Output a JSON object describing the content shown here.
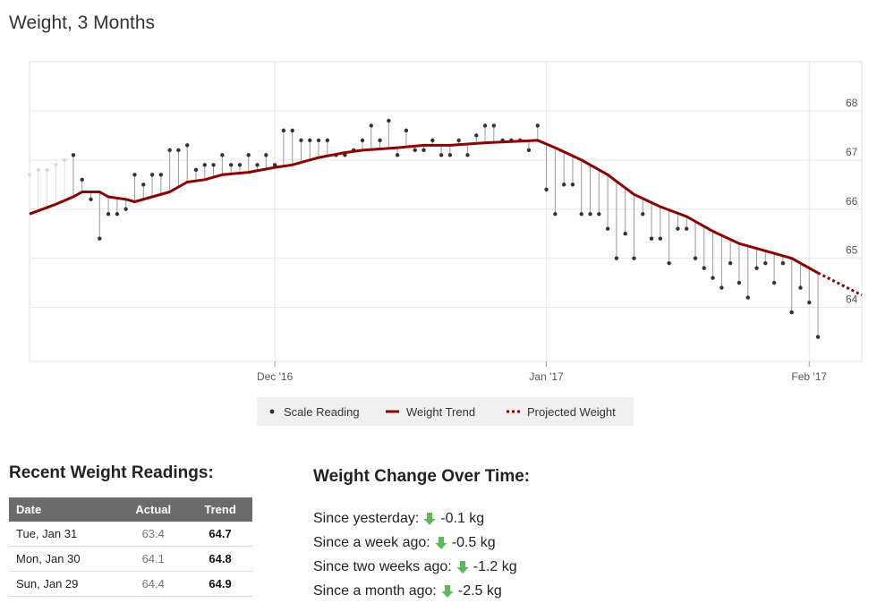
{
  "page_title": "Weight, 3 Months",
  "colors": {
    "trend": "#8b0000",
    "reading": "#333333",
    "grid": "#e6e6e6",
    "arrow": "#5cb85c",
    "table_header": "#6b6b6b"
  },
  "chart_data": {
    "type": "line",
    "title": "Weight, 3 Months",
    "x_start": "2016-11-03",
    "x_end": "2017-02-06",
    "ylim": [
      62.9,
      69.0
    ],
    "y_ticks": [
      64,
      65,
      66,
      67,
      68
    ],
    "x_ticks": [
      {
        "date": "2016-12-01",
        "label": "Dec '16"
      },
      {
        "date": "2017-01-01",
        "label": "Jan '17"
      },
      {
        "date": "2017-01-31",
        "label": "Feb '17"
      }
    ],
    "legend": [
      "Scale Reading",
      "Weight Trend",
      "Projected Weight"
    ],
    "faded_readings": [
      {
        "day": 0,
        "value": 66.7
      },
      {
        "day": 1,
        "value": 66.8
      },
      {
        "day": 2,
        "value": 66.8
      },
      {
        "day": 3,
        "value": 66.9
      },
      {
        "day": 4,
        "value": 67.0
      }
    ],
    "readings": [
      {
        "day": 5,
        "value": 67.1
      },
      {
        "day": 6,
        "value": 66.6
      },
      {
        "day": 7,
        "value": 66.2
      },
      {
        "day": 8,
        "value": 65.4
      },
      {
        "day": 9,
        "value": 65.9
      },
      {
        "day": 10,
        "value": 65.9
      },
      {
        "day": 11,
        "value": 66.0
      },
      {
        "day": 12,
        "value": 66.7
      },
      {
        "day": 13,
        "value": 66.5
      },
      {
        "day": 14,
        "value": 66.7
      },
      {
        "day": 15,
        "value": 66.7
      },
      {
        "day": 16,
        "value": 67.2
      },
      {
        "day": 17,
        "value": 67.2
      },
      {
        "day": 18,
        "value": 67.3
      },
      {
        "day": 19,
        "value": 66.8
      },
      {
        "day": 20,
        "value": 66.9
      },
      {
        "day": 21,
        "value": 66.9
      },
      {
        "day": 22,
        "value": 67.1
      },
      {
        "day": 23,
        "value": 66.9
      },
      {
        "day": 24,
        "value": 66.9
      },
      {
        "day": 25,
        "value": 67.1
      },
      {
        "day": 26,
        "value": 66.9
      },
      {
        "day": 27,
        "value": 67.1
      },
      {
        "day": 28,
        "value": 66.9
      },
      {
        "day": 29,
        "value": 67.6
      },
      {
        "day": 30,
        "value": 67.6
      },
      {
        "day": 31,
        "value": 67.4
      },
      {
        "day": 32,
        "value": 67.4
      },
      {
        "day": 33,
        "value": 67.4
      },
      {
        "day": 34,
        "value": 67.4
      },
      {
        "day": 35,
        "value": 67.1
      },
      {
        "day": 36,
        "value": 67.1
      },
      {
        "day": 37,
        "value": 67.2
      },
      {
        "day": 38,
        "value": 67.4
      },
      {
        "day": 39,
        "value": 67.7
      },
      {
        "day": 40,
        "value": 67.4
      },
      {
        "day": 41,
        "value": 67.8
      },
      {
        "day": 42,
        "value": 67.1
      },
      {
        "day": 43,
        "value": 67.6
      },
      {
        "day": 44,
        "value": 67.2
      },
      {
        "day": 45,
        "value": 67.2
      },
      {
        "day": 46,
        "value": 67.4
      },
      {
        "day": 47,
        "value": 67.1
      },
      {
        "day": 48,
        "value": 67.1
      },
      {
        "day": 49,
        "value": 67.4
      },
      {
        "day": 50,
        "value": 67.1
      },
      {
        "day": 51,
        "value": 67.5
      },
      {
        "day": 52,
        "value": 67.7
      },
      {
        "day": 53,
        "value": 67.7
      },
      {
        "day": 54,
        "value": 67.4
      },
      {
        "day": 55,
        "value": 67.4
      },
      {
        "day": 56,
        "value": 67.4
      },
      {
        "day": 57,
        "value": 67.2
      },
      {
        "day": 58,
        "value": 67.7
      },
      {
        "day": 59,
        "value": 66.4
      },
      {
        "day": 60,
        "value": 65.9
      },
      {
        "day": 61,
        "value": 66.5
      },
      {
        "day": 62,
        "value": 66.5
      },
      {
        "day": 63,
        "value": 65.9
      },
      {
        "day": 64,
        "value": 65.9
      },
      {
        "day": 65,
        "value": 65.9
      },
      {
        "day": 66,
        "value": 65.6
      },
      {
        "day": 67,
        "value": 65.0
      },
      {
        "day": 68,
        "value": 65.5
      },
      {
        "day": 69,
        "value": 65.0
      },
      {
        "day": 70,
        "value": 65.9
      },
      {
        "day": 71,
        "value": 65.4
      },
      {
        "day": 72,
        "value": 65.4
      },
      {
        "day": 73,
        "value": 64.9
      },
      {
        "day": 74,
        "value": 65.6
      },
      {
        "day": 75,
        "value": 65.6
      },
      {
        "day": 76,
        "value": 65.0
      },
      {
        "day": 77,
        "value": 64.8
      },
      {
        "day": 78,
        "value": 64.6
      },
      {
        "day": 79,
        "value": 64.4
      },
      {
        "day": 80,
        "value": 64.9
      },
      {
        "day": 81,
        "value": 64.5
      },
      {
        "day": 82,
        "value": 64.2
      },
      {
        "day": 83,
        "value": 64.8
      },
      {
        "day": 84,
        "value": 64.9
      },
      {
        "day": 85,
        "value": 64.5
      },
      {
        "day": 86,
        "value": 64.9
      },
      {
        "day": 87,
        "value": 63.9
      },
      {
        "day": 88,
        "value": 64.4
      },
      {
        "day": 89,
        "value": 64.1
      },
      {
        "day": 90,
        "value": 63.4
      }
    ],
    "trend": [
      {
        "day": 0,
        "value": 65.9
      },
      {
        "day": 3,
        "value": 66.1
      },
      {
        "day": 5,
        "value": 66.25
      },
      {
        "day": 6,
        "value": 66.35
      },
      {
        "day": 8,
        "value": 66.35
      },
      {
        "day": 9,
        "value": 66.25
      },
      {
        "day": 11,
        "value": 66.2
      },
      {
        "day": 12,
        "value": 66.15
      },
      {
        "day": 14,
        "value": 66.25
      },
      {
        "day": 16,
        "value": 66.35
      },
      {
        "day": 18,
        "value": 66.55
      },
      {
        "day": 20,
        "value": 66.6
      },
      {
        "day": 22,
        "value": 66.7
      },
      {
        "day": 25,
        "value": 66.75
      },
      {
        "day": 28,
        "value": 66.85
      },
      {
        "day": 30,
        "value": 66.9
      },
      {
        "day": 33,
        "value": 67.05
      },
      {
        "day": 36,
        "value": 67.15
      },
      {
        "day": 38,
        "value": 67.2
      },
      {
        "day": 42,
        "value": 67.25
      },
      {
        "day": 45,
        "value": 67.3
      },
      {
        "day": 48,
        "value": 67.3
      },
      {
        "day": 52,
        "value": 67.35
      },
      {
        "day": 58,
        "value": 67.4
      },
      {
        "day": 60,
        "value": 67.25
      },
      {
        "day": 63,
        "value": 67.0
      },
      {
        "day": 66,
        "value": 66.7
      },
      {
        "day": 69,
        "value": 66.3
      },
      {
        "day": 72,
        "value": 66.05
      },
      {
        "day": 75,
        "value": 65.85
      },
      {
        "day": 78,
        "value": 65.55
      },
      {
        "day": 81,
        "value": 65.3
      },
      {
        "day": 84,
        "value": 65.15
      },
      {
        "day": 87,
        "value": 65.0
      },
      {
        "day": 90,
        "value": 64.7
      }
    ],
    "projection": [
      {
        "day": 90,
        "value": 64.7
      },
      {
        "day": 95,
        "value": 64.25
      }
    ]
  },
  "recent": {
    "title": "Recent Weight Readings:",
    "headers": [
      "Date",
      "Actual",
      "Trend"
    ],
    "rows": [
      {
        "date": "Tue, Jan 31",
        "actual": "63.4",
        "trend": "64.7"
      },
      {
        "date": "Mon, Jan 30",
        "actual": "64.1",
        "trend": "64.8"
      },
      {
        "date": "Sun, Jan 29",
        "actual": "64.4",
        "trend": "64.9"
      }
    ]
  },
  "change": {
    "title": "Weight Change Over Time:",
    "items": [
      {
        "label": "Since yesterday:",
        "value": "-0.1 kg"
      },
      {
        "label": "Since a week ago:",
        "value": "-0.5 kg"
      },
      {
        "label": "Since two weeks ago:",
        "value": "-1.2 kg"
      },
      {
        "label": "Since a month ago:",
        "value": "-2.5 kg"
      }
    ]
  }
}
